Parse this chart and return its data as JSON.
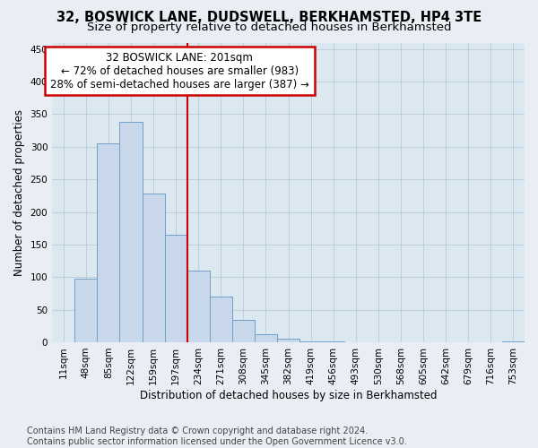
{
  "title": "32, BOSWICK LANE, DUDSWELL, BERKHAMSTED, HP4 3TE",
  "subtitle": "Size of property relative to detached houses in Berkhamsted",
  "xlabel": "Distribution of detached houses by size in Berkhamsted",
  "ylabel": "Number of detached properties",
  "footnote1": "Contains HM Land Registry data © Crown copyright and database right 2024.",
  "footnote2": "Contains public sector information licensed under the Open Government Licence v3.0.",
  "annotation_title": "32 BOSWICK LANE: 201sqm",
  "annotation_line1": "← 72% of detached houses are smaller (983)",
  "annotation_line2": "28% of semi-detached houses are larger (387) →",
  "bar_color": "#c8d8ea",
  "bar_edge_color": "#6ea0c8",
  "vline_color": "#cc0000",
  "annotation_box_edgecolor": "#cc0000",
  "categories": [
    "11sqm",
    "48sqm",
    "85sqm",
    "122sqm",
    "159sqm",
    "197sqm",
    "234sqm",
    "271sqm",
    "308sqm",
    "345sqm",
    "382sqm",
    "419sqm",
    "456sqm",
    "493sqm",
    "530sqm",
    "568sqm",
    "605sqm",
    "642sqm",
    "679sqm",
    "716sqm",
    "753sqm"
  ],
  "values": [
    0,
    97,
    305,
    338,
    228,
    165,
    110,
    70,
    35,
    13,
    5,
    2,
    1,
    0,
    0,
    0,
    0,
    0,
    0,
    0,
    2
  ],
  "ylim": [
    0,
    460
  ],
  "yticks": [
    0,
    50,
    100,
    150,
    200,
    250,
    300,
    350,
    400,
    450
  ],
  "vline_x_index": 5.5,
  "background_color": "#e8eef4",
  "plot_bg_color": "#dce8f0",
  "title_fontsize": 10.5,
  "subtitle_fontsize": 9.5,
  "axis_label_fontsize": 8.5,
  "tick_fontsize": 7.5,
  "annotation_fontsize": 8.5,
  "footnote_fontsize": 7
}
